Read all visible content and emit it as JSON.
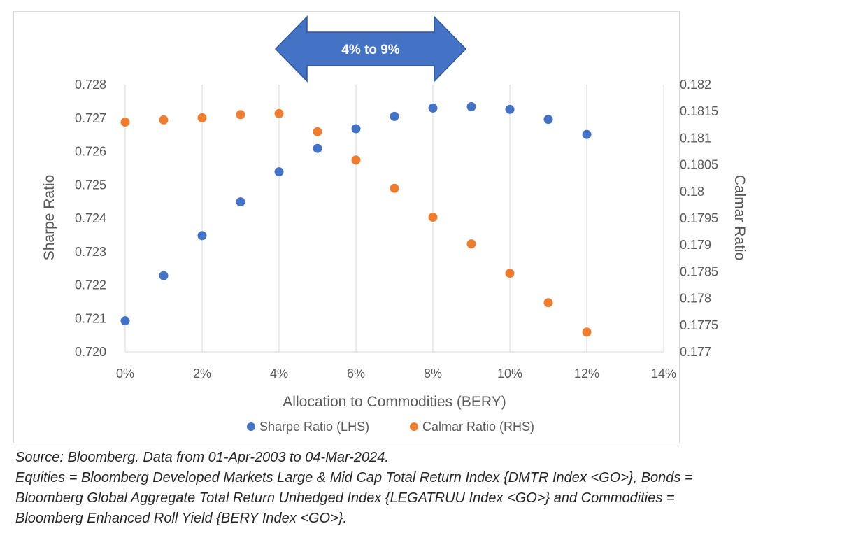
{
  "chart_data": {
    "type": "scatter",
    "xlabel": "Allocation to Commodities (BERY)",
    "ylabel_left": "Sharpe Ratio",
    "ylabel_right": "Calmar Ratio",
    "x_ticks": [
      "0%",
      "2%",
      "4%",
      "6%",
      "8%",
      "10%",
      "12%",
      "14%"
    ],
    "xlim": [
      0,
      14
    ],
    "y_left_ticks": [
      "0.720",
      "0.721",
      "0.722",
      "0.723",
      "0.724",
      "0.725",
      "0.726",
      "0.727",
      "0.728"
    ],
    "ylim_left": [
      0.72,
      0.728
    ],
    "y_right_ticks": [
      "0.177",
      "0.1775",
      "0.178",
      "0.1785",
      "0.179",
      "0.1795",
      "0.18",
      "0.1805",
      "0.181",
      "0.1815",
      "0.182"
    ],
    "ylim_right": [
      0.177,
      0.182
    ],
    "gridlines": "vertical",
    "legend_position": "bottom",
    "series": [
      {
        "name": "Sharpe Ratio (LHS)",
        "axis": "left",
        "color": "#4472C4",
        "x": [
          0,
          1,
          2,
          3,
          4,
          5,
          6,
          7,
          8,
          9,
          10,
          11,
          12
        ],
        "values": [
          0.72093,
          0.72228,
          0.72348,
          0.72449,
          0.72539,
          0.72609,
          0.72668,
          0.72705,
          0.7273,
          0.72734,
          0.72726,
          0.72696,
          0.72651
        ]
      },
      {
        "name": "Calmar Ratio (RHS)",
        "axis": "right",
        "color": "#ED7D31",
        "x": [
          0,
          1,
          2,
          3,
          4,
          5,
          6,
          7,
          8,
          9,
          10,
          11,
          12
        ],
        "values": [
          0.1813,
          0.18134,
          0.18138,
          0.18144,
          0.18146,
          0.18112,
          0.18059,
          0.18006,
          0.17952,
          0.17902,
          0.17847,
          0.17792,
          0.17737
        ]
      }
    ],
    "annotation": {
      "label": "4% to 9%",
      "from": 4,
      "to": 9,
      "color": "#4472C4"
    }
  },
  "source_lines": [
    "Source: Bloomberg. Data from 01-Apr-2003 to 04-Mar-2024.",
    "Equities = Bloomberg Developed Markets Large & Mid Cap Total Return Index {DMTR Index <GO>}, Bonds =",
    "Bloomberg Global Aggregate Total Return Unhedged Index {LEGATRUU Index <GO>} and Commodities =",
    "Bloomberg Enhanced Roll Yield {BERY Index <GO>}."
  ]
}
